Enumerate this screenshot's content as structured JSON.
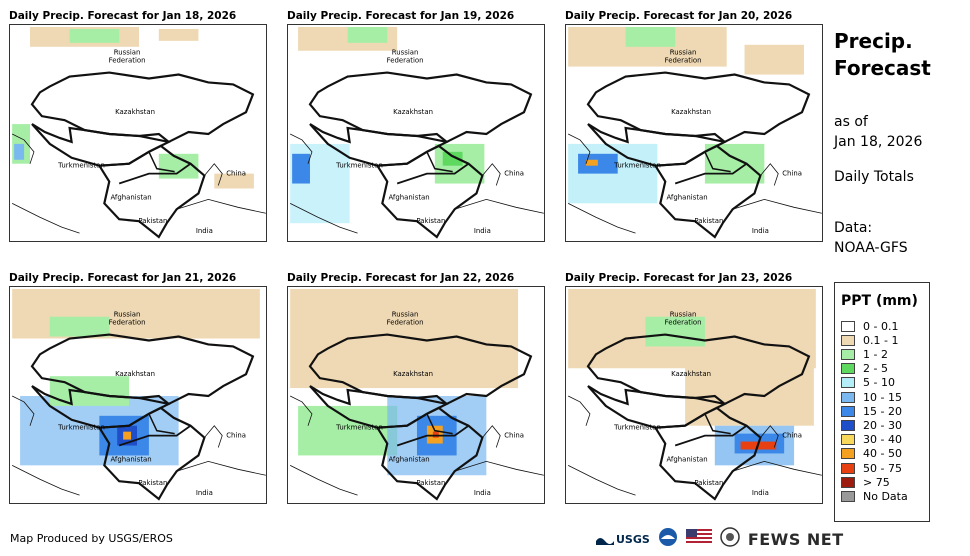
{
  "panels": [
    {
      "title": "Daily Precip. Forecast for Jan 18, 2026"
    },
    {
      "title": "Daily Precip. Forecast for Jan 19, 2026"
    },
    {
      "title": "Daily Precip. Forecast for Jan 20, 2026"
    },
    {
      "title": "Daily Precip. Forecast for Jan 21, 2026"
    },
    {
      "title": "Daily Precip. Forecast for Jan 22, 2026"
    },
    {
      "title": "Daily Precip. Forecast for Jan 23, 2026"
    }
  ],
  "map_labels": {
    "russia_line1": "Russian",
    "russia_line2": "Federation",
    "kazakhstan": "Kazakhstan",
    "turkmenistan": "Turkmenistan",
    "afghanistan": "Afghanistan",
    "pakistan": "Pakistan",
    "india": "India",
    "china": "China"
  },
  "side": {
    "title_line1": "Precip.",
    "title_line2": "Forecast",
    "asof_line1": "as of",
    "asof_line2": "Jan 18, 2026",
    "totals": "Daily Totals",
    "data_line1": "Data:",
    "data_line2": "NOAA-GFS"
  },
  "legend": {
    "title": "PPT (mm)",
    "items": [
      {
        "label": "0 - 0.1",
        "color": "#ffffff"
      },
      {
        "label": "0.1 - 1",
        "color": "#efd9b4"
      },
      {
        "label": "1 - 2",
        "color": "#a6eea6"
      },
      {
        "label": "2 - 5",
        "color": "#5fd85f"
      },
      {
        "label": "5 - 10",
        "color": "#b4ecf8"
      },
      {
        "label": "10 - 15",
        "color": "#7ab8f0"
      },
      {
        "label": "15 - 20",
        "color": "#3b88e8"
      },
      {
        "label": "20 - 30",
        "color": "#1f4fc8"
      },
      {
        "label": "30 - 40",
        "color": "#f8d85a"
      },
      {
        "label": "40 - 50",
        "color": "#f4a020"
      },
      {
        "label": "50 - 75",
        "color": "#e84010"
      },
      {
        "label": "> 75",
        "color": "#9c1c10"
      },
      {
        "label": "No Data",
        "color": "#999999"
      }
    ]
  },
  "footer": {
    "credit": "Map Produced by USGS/EROS"
  },
  "logos": {
    "usgs": "USGS",
    "fews": "FEWS NET"
  }
}
